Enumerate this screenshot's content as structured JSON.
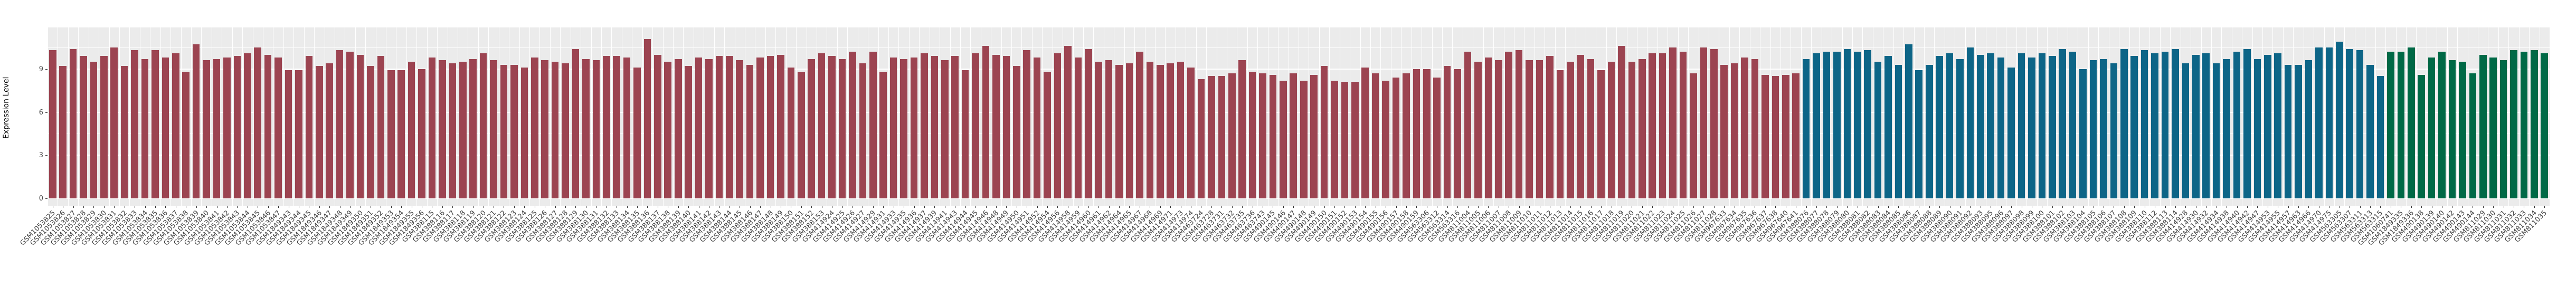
{
  "chart_data": {
    "type": "bar",
    "title": "",
    "xlabel": "",
    "ylabel": "Expression Level",
    "yticks": [
      0,
      3,
      6,
      9
    ],
    "yticks_minor": [
      1.5,
      4.5,
      7.5,
      10.5
    ],
    "ylim": [
      0,
      11.9
    ],
    "grid": true,
    "legend": false,
    "panel_background": "#ebebeb",
    "gridline_color": "#ffffff",
    "series": [
      {
        "name": "group-maroon",
        "color": "#9c4451",
        "labels": [
          "GSM1053825",
          "GSM1053826",
          "GSM1053827",
          "GSM1053828",
          "GSM1053829",
          "GSM1053830",
          "GSM1053831",
          "GSM1053832",
          "GSM1053833",
          "GSM1053834",
          "GSM1053835",
          "GSM1053836",
          "GSM1053837",
          "GSM1053838",
          "GSM1053839",
          "GSM1053840",
          "GSM1053841",
          "GSM1053842",
          "GSM1053843",
          "GSM1053844",
          "GSM1053845",
          "GSM1053846",
          "GSM1053847",
          "GSM1849343",
          "GSM1849344",
          "GSM1849345",
          "GSM1849346",
          "GSM1849347",
          "GSM1849348",
          "GSM1849349",
          "GSM1849350",
          "GSM1849351",
          "GSM1849352",
          "GSM1849353",
          "GSM1849354",
          "GSM1849355",
          "GSM1849356",
          "GSM388115",
          "GSM388116",
          "GSM388117",
          "GSM388118",
          "GSM388119",
          "GSM388120",
          "GSM388121",
          "GSM388122",
          "GSM388123",
          "GSM388124",
          "GSM388125",
          "GSM388126",
          "GSM388127",
          "GSM388128",
          "GSM388129",
          "GSM388130",
          "GSM388131",
          "GSM388132",
          "GSM388133",
          "GSM388134",
          "GSM388135",
          "GSM388136",
          "GSM388137",
          "GSM388138",
          "GSM388139",
          "GSM388140",
          "GSM388141",
          "GSM388142",
          "GSM388143",
          "GSM388144",
          "GSM388145",
          "GSM388146",
          "GSM388147",
          "GSM388148",
          "GSM388149",
          "GSM388150",
          "GSM388151",
          "GSM388152",
          "GSM388153",
          "GSM414924",
          "GSM414925",
          "GSM414926",
          "GSM414927",
          "GSM414929",
          "GSM414931",
          "GSM414933",
          "GSM414935",
          "GSM414936",
          "GSM414937",
          "GSM414939",
          "GSM414941",
          "GSM414943",
          "GSM414944",
          "GSM414945",
          "GSM414946",
          "GSM414948",
          "GSM414949",
          "GSM414950",
          "GSM414951",
          "GSM414952",
          "GSM414954",
          "GSM414956",
          "GSM414958",
          "GSM414959",
          "GSM414960",
          "GSM414961",
          "GSM414962",
          "GSM414964",
          "GSM414965",
          "GSM414967",
          "GSM414968",
          "GSM414969",
          "GSM414971",
          "GSM414973",
          "GSM414974",
          "GSM463724",
          "GSM463728",
          "GSM463731",
          "GSM463732",
          "GSM463735",
          "GSM463736",
          "GSM463743",
          "GSM490145",
          "GSM490146",
          "GSM490147",
          "GSM490148",
          "GSM490149",
          "GSM490150",
          "GSM490151",
          "GSM490152",
          "GSM490153",
          "GSM490154",
          "GSM490155",
          "GSM490156",
          "GSM490157",
          "GSM490158",
          "GSM490159",
          "GSM563306",
          "GSM563312",
          "GSM563314",
          "GSM563316",
          "GSM811004",
          "GSM811005",
          "GSM811006",
          "GSM811007",
          "GSM811008",
          "GSM811009",
          "GSM811010",
          "GSM811011",
          "GSM811012",
          "GSM811013",
          "GSM811014",
          "GSM811015",
          "GSM811016",
          "GSM811017",
          "GSM811018",
          "GSM811019",
          "GSM811020",
          "GSM811021",
          "GSM811022",
          "GSM811023",
          "GSM811024",
          "GSM811025",
          "GSM811026",
          "GSM811027",
          "GSM811028",
          "GSM967633",
          "GSM967634",
          "GSM967635",
          "GSM967636",
          "GSM967637",
          "GSM967638",
          "GSM967640",
          "GSM967641"
        ],
        "values": [
          10.3,
          9.2,
          10.4,
          9.9,
          9.5,
          9.9,
          10.5,
          9.2,
          10.3,
          9.7,
          10.3,
          9.8,
          10.1,
          8.8,
          10.7,
          9.6,
          9.7,
          9.8,
          9.9,
          10.1,
          10.5,
          10.0,
          9.8,
          8.9,
          8.9,
          9.9,
          9.2,
          9.4,
          10.3,
          10.2,
          10.0,
          9.2,
          9.9,
          8.9,
          8.9,
          9.5,
          9.0,
          9.8,
          9.6,
          9.4,
          9.5,
          9.7,
          10.1,
          9.6,
          9.3,
          9.3,
          9.1,
          9.8,
          9.6,
          9.5,
          9.4,
          10.4,
          9.7,
          9.6,
          9.9,
          9.9,
          9.8,
          9.1,
          11.1,
          10.0,
          9.5,
          9.7,
          9.2,
          9.8,
          9.7,
          9.9,
          9.9,
          9.6,
          9.3,
          9.8,
          9.9,
          10.0,
          9.1,
          8.8,
          9.7,
          10.1,
          9.9,
          9.7,
          10.2,
          9.4,
          10.2,
          8.8,
          9.8,
          9.7,
          9.8,
          10.1,
          9.9,
          9.6,
          9.9,
          8.9,
          10.1,
          10.6,
          10.0,
          9.9,
          9.2,
          10.3,
          9.8,
          8.8,
          10.1,
          10.6,
          9.8,
          10.4,
          9.5,
          9.6,
          9.3,
          9.4,
          10.2,
          9.5,
          9.3,
          9.4,
          9.5,
          9.1,
          8.3,
          8.5,
          8.5,
          8.7,
          9.6,
          8.8,
          8.7,
          8.6,
          8.2,
          8.7,
          8.2,
          8.6,
          9.2,
          8.2,
          8.1,
          8.1,
          9.1,
          8.7,
          8.2,
          8.4,
          8.7,
          9.0,
          9.0,
          8.4,
          9.2,
          9.0,
          10.2,
          9.5,
          9.8,
          9.6,
          10.2,
          10.3,
          9.6,
          9.6,
          9.9,
          8.9,
          9.5,
          10.0,
          9.7,
          8.9,
          9.5,
          10.6,
          9.5,
          9.7,
          10.1,
          10.1,
          10.5,
          10.2,
          8.7,
          10.5,
          10.4,
          9.3,
          9.4,
          9.8,
          9.7,
          8.6,
          8.5,
          8.6,
          8.7
        ]
      },
      {
        "name": "group-teal",
        "color": "#0d6587",
        "labels": [
          "GSM388076",
          "GSM388077",
          "GSM388078",
          "GSM388079",
          "GSM388080",
          "GSM388081",
          "GSM388082",
          "GSM388083",
          "GSM388084",
          "GSM388085",
          "GSM388086",
          "GSM388087",
          "GSM388088",
          "GSM388089",
          "GSM388090",
          "GSM388091",
          "GSM388092",
          "GSM388093",
          "GSM388095",
          "GSM388096",
          "GSM388097",
          "GSM388098",
          "GSM388099",
          "GSM388100",
          "GSM388101",
          "GSM388102",
          "GSM388103",
          "GSM388104",
          "GSM388105",
          "GSM388106",
          "GSM388107",
          "GSM388108",
          "GSM388109",
          "GSM388110",
          "GSM388112",
          "GSM388113",
          "GSM388114",
          "GSM414928",
          "GSM414930",
          "GSM414932",
          "GSM414934",
          "GSM414938",
          "GSM414940",
          "GSM414942",
          "GSM414947",
          "GSM414953",
          "GSM414955",
          "GSM414957",
          "GSM414963",
          "GSM414966",
          "GSM414970",
          "GSM414975",
          "GSM563305",
          "GSM563307",
          "GSM563311",
          "GSM563313",
          "GSM563315"
        ],
        "values": [
          9.7,
          10.1,
          10.2,
          10.2,
          10.4,
          10.2,
          10.3,
          9.5,
          9.9,
          9.3,
          10.7,
          8.9,
          9.3,
          9.9,
          10.1,
          9.7,
          10.5,
          10.0,
          10.1,
          9.8,
          9.1,
          10.1,
          9.8,
          10.1,
          9.9,
          10.4,
          10.2,
          9.0,
          9.6,
          9.7,
          9.4,
          10.4,
          9.9,
          10.3,
          10.1,
          10.2,
          10.4,
          9.4,
          10.0,
          10.1,
          9.4,
          9.7,
          10.2,
          10.4,
          9.7,
          10.0,
          10.1,
          9.3,
          9.3,
          9.6,
          10.5,
          10.5,
          10.9,
          10.4,
          10.3,
          9.3,
          8.5
        ]
      },
      {
        "name": "group-green",
        "color": "#006946",
        "labels": [
          "GSM1060741",
          "GSM1849335",
          "GSM1849336",
          "GSM490138",
          "GSM490139",
          "GSM490140",
          "GSM490142",
          "GSM490143",
          "GSM490144",
          "GSM811029",
          "GSM811030",
          "GSM811031",
          "GSM811032",
          "GSM811033",
          "GSM811034",
          "GSM811035"
        ],
        "values": [
          10.2,
          10.2,
          10.5,
          8.6,
          9.8,
          10.2,
          9.6,
          9.5,
          8.7,
          10.0,
          9.8,
          9.6,
          10.3,
          10.2,
          10.3,
          10.1
        ]
      }
    ]
  }
}
